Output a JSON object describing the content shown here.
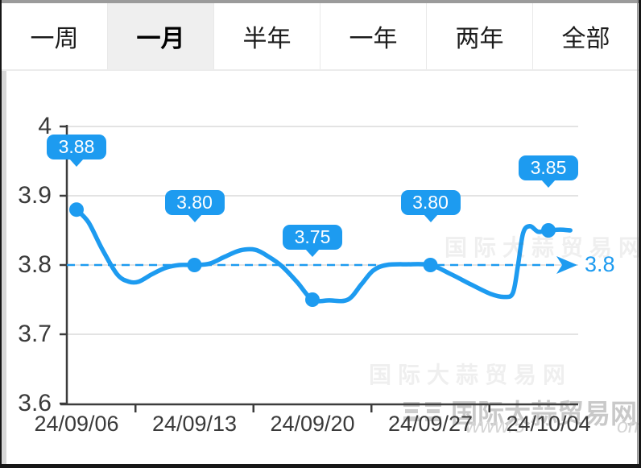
{
  "tabs": {
    "items": [
      {
        "label": "一周",
        "active": false
      },
      {
        "label": "一月",
        "active": true
      },
      {
        "label": "半年",
        "active": false
      },
      {
        "label": "一年",
        "active": false
      },
      {
        "label": "两年",
        "active": false
      },
      {
        "label": "全部",
        "active": false
      }
    ]
  },
  "watermark": {
    "site_name": "国际大蒜贸易网",
    "url_fragment_left": "www.5",
    "url_fragment_right": "om"
  },
  "colors": {
    "accent_blue": "#1d9bf0",
    "axis": "#3c3c3c",
    "grid": "#dadada",
    "active_tab_bg": "#efefef",
    "watermark_gray": "#c9c9c9"
  },
  "chart_data": {
    "type": "line",
    "x_labels": [
      "24/09/06",
      "24/09/13",
      "24/09/20",
      "24/09/27",
      "24/10/04"
    ],
    "y_ticks": [
      "4",
      "3.9",
      "3.8",
      "3.7",
      "3.6"
    ],
    "y_min": 3.6,
    "y_max": 4.0,
    "grid": true,
    "legend": "none",
    "line_color": "#1d9bf0",
    "reference_line": {
      "value": 3.8,
      "label": "3.8",
      "style": "dashed-arrow"
    },
    "markers": [
      {
        "day": 0,
        "date": "24/09/06",
        "value": 3.88,
        "label": "3.88"
      },
      {
        "day": 7,
        "date": "24/09/13",
        "value": 3.8,
        "label": "3.80"
      },
      {
        "day": 14,
        "date": "24/09/20",
        "value": 3.75,
        "label": "3.75"
      },
      {
        "day": 21,
        "date": "24/09/27",
        "value": 3.8,
        "label": "3.80"
      },
      {
        "day": 28,
        "date": "24/10/04",
        "value": 3.85,
        "label": "3.85"
      }
    ],
    "series": [
      [
        0,
        3.88
      ],
      [
        0.7,
        3.862
      ],
      [
        1.5,
        3.824
      ],
      [
        2.4,
        3.787
      ],
      [
        3.1,
        3.776
      ],
      [
        3.7,
        3.776
      ],
      [
        4.5,
        3.787
      ],
      [
        5.3,
        3.796
      ],
      [
        6.1,
        3.8
      ],
      [
        7,
        3.8
      ],
      [
        7.9,
        3.802
      ],
      [
        8.8,
        3.812
      ],
      [
        9.7,
        3.821
      ],
      [
        10.6,
        3.822
      ],
      [
        11.4,
        3.812
      ],
      [
        12.2,
        3.798
      ],
      [
        13.1,
        3.775
      ],
      [
        14,
        3.75
      ],
      [
        15,
        3.749
      ],
      [
        16.1,
        3.75
      ],
      [
        16.9,
        3.772
      ],
      [
        17.6,
        3.792
      ],
      [
        18.4,
        3.8
      ],
      [
        19.6,
        3.801
      ],
      [
        21,
        3.8
      ],
      [
        22.2,
        3.787
      ],
      [
        23.4,
        3.772
      ],
      [
        24.6,
        3.758
      ],
      [
        25.4,
        3.754
      ],
      [
        25.9,
        3.76
      ],
      [
        26.2,
        3.8
      ],
      [
        26.5,
        3.846
      ],
      [
        26.9,
        3.856
      ],
      [
        27.4,
        3.848
      ],
      [
        27.9,
        3.85
      ],
      [
        28,
        3.85
      ],
      [
        28.7,
        3.851
      ],
      [
        29.3,
        3.85
      ]
    ]
  }
}
